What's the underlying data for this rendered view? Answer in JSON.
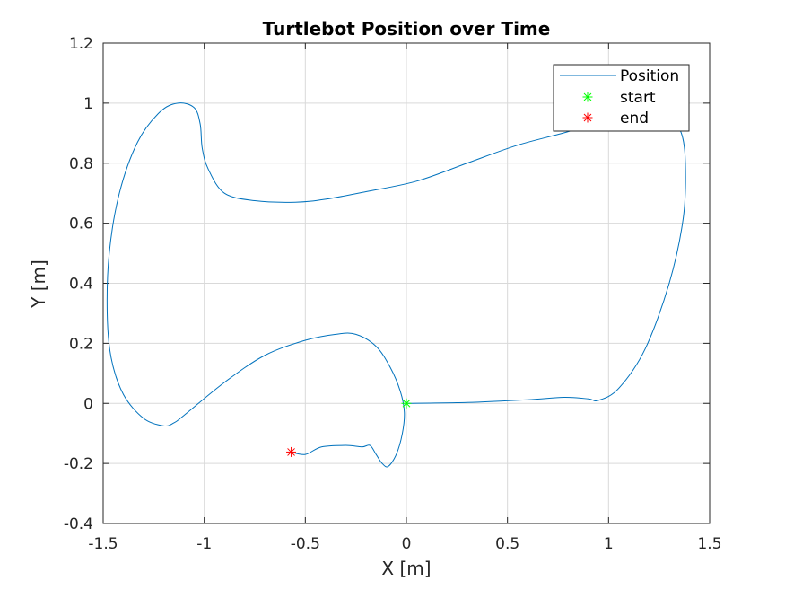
{
  "chart_data": {
    "type": "line",
    "title": "Turtlebot Position over Time",
    "xlabel": "X [m]",
    "ylabel": "Y [m]",
    "xlim": [
      -1.5,
      1.5
    ],
    "ylim": [
      -0.4,
      1.2
    ],
    "xticks": [
      -1.5,
      -1,
      -0.5,
      0,
      0.5,
      1,
      1.5
    ],
    "xtick_labels": [
      "-1.5",
      "-1",
      "-0.5",
      "0",
      "0.5",
      "1",
      "1.5"
    ],
    "yticks": [
      -0.4,
      -0.2,
      0,
      0.2,
      0.4,
      0.6,
      0.8,
      1,
      1.2
    ],
    "ytick_labels": [
      "-0.4",
      "-0.2",
      "0",
      "0.2",
      "0.4",
      "0.6",
      "0.8",
      "1",
      "1.2"
    ],
    "grid": true,
    "legend_position": "top-right",
    "series": [
      {
        "name": "Position",
        "color": "#0072BD",
        "x": [
          0,
          0.3,
          0.6,
          0.78,
          0.9,
          0.95,
          1.05,
          1.18,
          1.3,
          1.37,
          1.38,
          1.36,
          1.3,
          1.15,
          1.0,
          0.8,
          0.55,
          0.3,
          0.05,
          -0.2,
          -0.4,
          -0.55,
          -0.75,
          -0.9,
          -0.98,
          -1.01,
          -1.02,
          -1.05,
          -1.13,
          -1.22,
          -1.33,
          -1.42,
          -1.47,
          -1.48,
          -1.46,
          -1.4,
          -1.3,
          -1.2,
          -1.15,
          -1.1,
          -0.9,
          -0.7,
          -0.5,
          -0.35,
          -0.25,
          -0.15,
          -0.08,
          -0.03,
          -0.01,
          -0.02,
          -0.05,
          -0.09,
          -0.12,
          -0.15,
          -0.18,
          -0.22,
          -0.3,
          -0.42,
          -0.5,
          -0.57
        ],
        "y": [
          0,
          0.003,
          0.012,
          0.02,
          0.015,
          0.01,
          0.05,
          0.18,
          0.4,
          0.62,
          0.8,
          0.9,
          0.95,
          0.975,
          0.95,
          0.905,
          0.86,
          0.8,
          0.74,
          0.705,
          0.68,
          0.67,
          0.675,
          0.7,
          0.78,
          0.85,
          0.93,
          0.985,
          1.0,
          0.97,
          0.87,
          0.7,
          0.5,
          0.3,
          0.15,
          0.03,
          -0.05,
          -0.075,
          -0.065,
          -0.04,
          0.07,
          0.16,
          0.21,
          0.23,
          0.23,
          0.19,
          0.12,
          0.04,
          -0.03,
          -0.1,
          -0.17,
          -0.21,
          -0.2,
          -0.17,
          -0.14,
          -0.145,
          -0.14,
          -0.145,
          -0.17,
          -0.162
        ]
      }
    ],
    "markers": [
      {
        "name": "start",
        "x": 0,
        "y": 0,
        "color": "#00FF00",
        "symbol": "*"
      },
      {
        "name": "end",
        "x": -0.57,
        "y": -0.162,
        "color": "#FF0000",
        "symbol": "*"
      }
    ]
  }
}
